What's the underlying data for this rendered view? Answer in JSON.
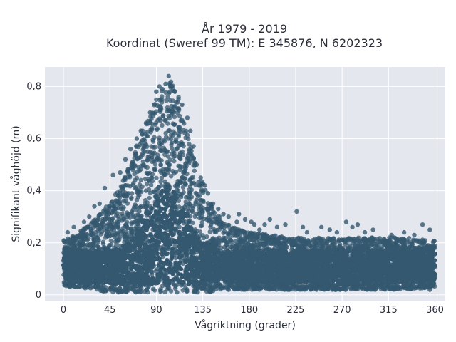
{
  "chart_data": {
    "type": "scatter",
    "title_line1": "År 1979 - 2019",
    "title_line2": "Koordinat (Sweref 99 TM): E 345876, N 6202323",
    "xlabel": "Vågriktning (grader)",
    "ylabel": "Signifikant våghöjd (m)",
    "xlim": [
      -18,
      370
    ],
    "ylim": [
      -0.025,
      0.875
    ],
    "x_ticks": [
      0,
      45,
      90,
      135,
      180,
      225,
      270,
      315,
      360
    ],
    "x_tick_labels": [
      "0",
      "45",
      "90",
      "135",
      "180",
      "225",
      "270",
      "315",
      "360"
    ],
    "y_ticks": [
      0,
      0.2,
      0.4,
      0.6,
      0.8
    ],
    "y_tick_labels": [
      "0",
      "0,2",
      "0,4",
      "0,6",
      "0,8"
    ],
    "grid": true,
    "legend": "none",
    "point_color": "#34586f",
    "plot_bg": "#e5e7ef",
    "grid_color": "#ffffff",
    "envelope": {
      "x": [
        0,
        15,
        30,
        45,
        60,
        75,
        85,
        95,
        100,
        105,
        110,
        115,
        120,
        130,
        140,
        150,
        165,
        180,
        200,
        225,
        250,
        270,
        300,
        330,
        360
      ],
      "upper": [
        0.21,
        0.24,
        0.29,
        0.36,
        0.46,
        0.62,
        0.72,
        0.79,
        0.81,
        0.84,
        0.79,
        0.7,
        0.62,
        0.48,
        0.38,
        0.31,
        0.26,
        0.24,
        0.23,
        0.22,
        0.22,
        0.22,
        0.22,
        0.22,
        0.21
      ],
      "lower": [
        0.03,
        0.03,
        0.02,
        0.01,
        0.01,
        0.01,
        0.01,
        0.01,
        0.01,
        0.01,
        0.01,
        0.01,
        0.01,
        0.01,
        0.01,
        0.02,
        0.02,
        0.02,
        0.02,
        0.02,
        0.02,
        0.02,
        0.02,
        0.02,
        0.03
      ]
    },
    "points": [
      [
        102,
        0.84
      ],
      [
        99,
        0.81
      ],
      [
        105,
        0.8
      ],
      [
        96,
        0.79
      ],
      [
        93,
        0.8
      ],
      [
        108,
        0.78
      ],
      [
        90,
        0.78
      ],
      [
        84,
        0.7
      ],
      [
        80,
        0.66
      ],
      [
        75,
        0.63
      ],
      [
        71,
        0.6
      ],
      [
        65,
        0.56
      ],
      [
        60,
        0.52
      ],
      [
        55,
        0.47
      ],
      [
        48,
        0.46
      ],
      [
        40,
        0.41
      ],
      [
        35,
        0.35
      ],
      [
        30,
        0.34
      ],
      [
        25,
        0.3
      ],
      [
        20,
        0.28
      ],
      [
        10,
        0.26
      ],
      [
        4,
        0.24
      ],
      [
        115,
        0.73
      ],
      [
        120,
        0.68
      ],
      [
        123,
        0.63
      ],
      [
        126,
        0.57
      ],
      [
        129,
        0.5
      ],
      [
        133,
        0.45
      ],
      [
        137,
        0.42
      ],
      [
        140,
        0.39
      ],
      [
        145,
        0.35
      ],
      [
        150,
        0.33
      ],
      [
        155,
        0.31
      ],
      [
        160,
        0.3
      ],
      [
        168,
        0.28
      ],
      [
        176,
        0.29
      ],
      [
        185,
        0.27
      ],
      [
        195,
        0.27
      ],
      [
        207,
        0.26
      ],
      [
        226,
        0.32
      ],
      [
        232,
        0.26
      ],
      [
        250,
        0.26
      ],
      [
        258,
        0.25
      ],
      [
        274,
        0.28
      ],
      [
        280,
        0.26
      ],
      [
        285,
        0.27
      ],
      [
        300,
        0.25
      ],
      [
        330,
        0.24
      ],
      [
        348,
        0.27
      ],
      [
        355,
        0.25
      ],
      [
        200,
        0.29
      ],
      [
        215,
        0.27
      ],
      [
        236,
        0.24
      ],
      [
        265,
        0.24
      ],
      [
        292,
        0.24
      ],
      [
        318,
        0.23
      ],
      [
        340,
        0.23
      ],
      [
        170,
        0.31
      ],
      [
        182,
        0.28
      ],
      [
        190,
        0.25
      ],
      [
        212,
        0.04
      ],
      [
        244,
        0.03
      ],
      [
        268,
        0.02
      ],
      [
        300,
        0.03
      ],
      [
        330,
        0.03
      ],
      [
        355,
        0.02
      ],
      [
        186,
        0.03
      ],
      [
        160,
        0.02
      ],
      [
        130,
        0.01
      ],
      [
        110,
        0.01
      ],
      [
        70,
        0.01
      ],
      [
        45,
        0.02
      ],
      [
        20,
        0.03
      ],
      [
        5,
        0.04
      ],
      [
        62,
        0.3
      ],
      [
        80,
        0.4
      ],
      [
        100,
        0.55
      ],
      [
        115,
        0.45
      ],
      [
        140,
        0.2
      ],
      [
        180,
        0.16
      ]
    ]
  }
}
